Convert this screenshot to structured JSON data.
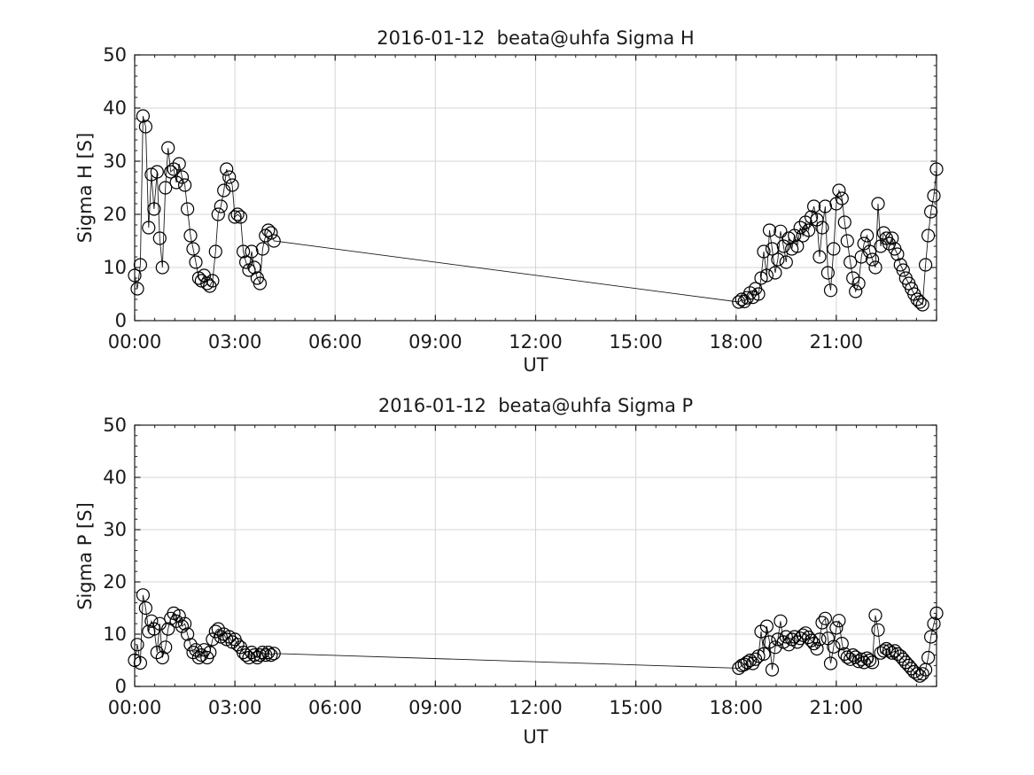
{
  "figure": {
    "background_color": "#ffffff",
    "axis_color": "#1a1a1a",
    "grid_color": "#d6d6d6",
    "text_color": "#1a1a1a",
    "marker_color": "#000000",
    "line_color": "#1a1a1a"
  },
  "chart_data": [
    {
      "type": "line",
      "marker": "circle",
      "title": "2016-01-12  beata@uhfa Sigma H",
      "xlabel": "UT",
      "ylabel": "Sigma H [S]",
      "xlim_hours": [
        0,
        24
      ],
      "ylim": [
        0,
        50
      ],
      "grid": true,
      "x_major_ticks_hours": [
        0,
        3,
        6,
        9,
        12,
        15,
        18,
        21,
        24
      ],
      "x_tick_labels": [
        "00:00",
        "03:00",
        "06:00",
        "09:00",
        "12:00",
        "15:00",
        "18:00",
        "21:00",
        ""
      ],
      "y_major_ticks": [
        0,
        10,
        20,
        30,
        40,
        50
      ],
      "y_tick_labels": [
        "0",
        "10",
        "20",
        "30",
        "40",
        "50"
      ],
      "x_minor_step_hours": 0.6,
      "y_minor_step": 2,
      "data_gap_hours": [
        4.17,
        18.08
      ],
      "series": [
        {
          "name": "Sigma H",
          "points_t_hours_value": [
            [
              0,
              8.5
            ],
            [
              0.08,
              6
            ],
            [
              0.17,
              10.5
            ],
            [
              0.25,
              38.5
            ],
            [
              0.33,
              36.5
            ],
            [
              0.42,
              17.5
            ],
            [
              0.5,
              27.5
            ],
            [
              0.58,
              21
            ],
            [
              0.67,
              28
            ],
            [
              0.75,
              15.5
            ],
            [
              0.83,
              10
            ],
            [
              0.92,
              25
            ],
            [
              1,
              32.5
            ],
            [
              1.08,
              28
            ],
            [
              1.17,
              28.5
            ],
            [
              1.25,
              26
            ],
            [
              1.33,
              29.5
            ],
            [
              1.42,
              27
            ],
            [
              1.5,
              25.5
            ],
            [
              1.58,
              21
            ],
            [
              1.67,
              16
            ],
            [
              1.75,
              13.5
            ],
            [
              1.83,
              11
            ],
            [
              1.92,
              8
            ],
            [
              2,
              7.5
            ],
            [
              2.08,
              8.5
            ],
            [
              2.17,
              7
            ],
            [
              2.25,
              6.5
            ],
            [
              2.33,
              7.5
            ],
            [
              2.42,
              13
            ],
            [
              2.5,
              20
            ],
            [
              2.58,
              21.5
            ],
            [
              2.67,
              24.5
            ],
            [
              2.75,
              28.5
            ],
            [
              2.83,
              27
            ],
            [
              2.92,
              25.5
            ],
            [
              3,
              19.5
            ],
            [
              3.08,
              20
            ],
            [
              3.17,
              19.5
            ],
            [
              3.25,
              13
            ],
            [
              3.33,
              11
            ],
            [
              3.42,
              9.5
            ],
            [
              3.5,
              13
            ],
            [
              3.58,
              10
            ],
            [
              3.67,
              8
            ],
            [
              3.75,
              7
            ],
            [
              3.83,
              13.5
            ],
            [
              3.92,
              16
            ],
            [
              4,
              17
            ],
            [
              4.08,
              16.5
            ],
            [
              4.17,
              15
            ],
            [
              18.08,
              3.5
            ],
            [
              18.17,
              4
            ],
            [
              18.25,
              3.6
            ],
            [
              18.33,
              4.3
            ],
            [
              18.42,
              5.2
            ],
            [
              18.5,
              4.4
            ],
            [
              18.58,
              6
            ],
            [
              18.67,
              5
            ],
            [
              18.75,
              8
            ],
            [
              18.83,
              13
            ],
            [
              18.92,
              8.5
            ],
            [
              19,
              17
            ],
            [
              19.08,
              13.5
            ],
            [
              19.17,
              9
            ],
            [
              19.25,
              11.5
            ],
            [
              19.33,
              16.8
            ],
            [
              19.42,
              14
            ],
            [
              19.5,
              11
            ],
            [
              19.58,
              15.5
            ],
            [
              19.67,
              13.5
            ],
            [
              19.75,
              16
            ],
            [
              19.83,
              14
            ],
            [
              19.92,
              17.5
            ],
            [
              20,
              16
            ],
            [
              20.08,
              18.5
            ],
            [
              20.17,
              17
            ],
            [
              20.25,
              19.5
            ],
            [
              20.33,
              21.5
            ],
            [
              20.42,
              19
            ],
            [
              20.5,
              12
            ],
            [
              20.58,
              17.5
            ],
            [
              20.67,
              21.5
            ],
            [
              20.75,
              9
            ],
            [
              20.83,
              5.7
            ],
            [
              20.92,
              13.5
            ],
            [
              21,
              22
            ],
            [
              21.08,
              24.5
            ],
            [
              21.17,
              23
            ],
            [
              21.25,
              18.5
            ],
            [
              21.33,
              15
            ],
            [
              21.42,
              11
            ],
            [
              21.5,
              8
            ],
            [
              21.58,
              5.5
            ],
            [
              21.67,
              7
            ],
            [
              21.75,
              12
            ],
            [
              21.83,
              14.5
            ],
            [
              21.92,
              16
            ],
            [
              22,
              13
            ],
            [
              22.08,
              11.5
            ],
            [
              22.17,
              10
            ],
            [
              22.25,
              22
            ],
            [
              22.33,
              14
            ],
            [
              22.42,
              16.5
            ],
            [
              22.5,
              15.5
            ],
            [
              22.58,
              14.5
            ],
            [
              22.67,
              15.5
            ],
            [
              22.75,
              13.5
            ],
            [
              22.83,
              12.5
            ],
            [
              22.92,
              10.5
            ],
            [
              23,
              9.5
            ],
            [
              23.08,
              8
            ],
            [
              23.17,
              7
            ],
            [
              23.25,
              6
            ],
            [
              23.33,
              5
            ],
            [
              23.42,
              4
            ],
            [
              23.5,
              3.5
            ],
            [
              23.58,
              3
            ],
            [
              23.67,
              10.5
            ],
            [
              23.75,
              16
            ],
            [
              23.83,
              20.5
            ],
            [
              23.92,
              23.5
            ],
            [
              24,
              28.5
            ]
          ]
        }
      ]
    },
    {
      "type": "line",
      "marker": "circle",
      "title": "2016-01-12  beata@uhfa Sigma P",
      "xlabel": "UT",
      "ylabel": "Sigma P [S]",
      "xlim_hours": [
        0,
        24
      ],
      "ylim": [
        0,
        50
      ],
      "grid": true,
      "x_major_ticks_hours": [
        0,
        3,
        6,
        9,
        12,
        15,
        18,
        21,
        24
      ],
      "x_tick_labels": [
        "00:00",
        "03:00",
        "06:00",
        "09:00",
        "12:00",
        "15:00",
        "18:00",
        "21:00",
        ""
      ],
      "y_major_ticks": [
        0,
        10,
        20,
        30,
        40,
        50
      ],
      "y_tick_labels": [
        "0",
        "10",
        "20",
        "30",
        "40",
        "50"
      ],
      "x_minor_step_hours": 0.6,
      "y_minor_step": 2,
      "data_gap_hours": [
        4.17,
        18.08
      ],
      "series": [
        {
          "name": "Sigma P",
          "points_t_hours_value": [
            [
              0,
              5
            ],
            [
              0.08,
              8
            ],
            [
              0.17,
              4.5
            ],
            [
              0.25,
              17.5
            ],
            [
              0.33,
              15
            ],
            [
              0.42,
              10.5
            ],
            [
              0.5,
              12.5
            ],
            [
              0.58,
              11
            ],
            [
              0.67,
              6.5
            ],
            [
              0.75,
              12
            ],
            [
              0.83,
              5.5
            ],
            [
              0.92,
              7.5
            ],
            [
              1,
              11
            ],
            [
              1.08,
              13
            ],
            [
              1.17,
              14
            ],
            [
              1.25,
              12.5
            ],
            [
              1.33,
              13.5
            ],
            [
              1.42,
              11.5
            ],
            [
              1.5,
              12
            ],
            [
              1.58,
              10
            ],
            [
              1.67,
              8
            ],
            [
              1.75,
              6.5
            ],
            [
              1.83,
              7
            ],
            [
              1.92,
              5.5
            ],
            [
              2,
              6
            ],
            [
              2.08,
              7
            ],
            [
              2.17,
              5.5
            ],
            [
              2.25,
              6.5
            ],
            [
              2.33,
              9
            ],
            [
              2.42,
              10.5
            ],
            [
              2.5,
              11
            ],
            [
              2.58,
              9.5
            ],
            [
              2.67,
              10
            ],
            [
              2.75,
              9
            ],
            [
              2.83,
              9.5
            ],
            [
              2.92,
              8.5
            ],
            [
              3,
              9
            ],
            [
              3.08,
              8
            ],
            [
              3.17,
              7.5
            ],
            [
              3.25,
              6.5
            ],
            [
              3.33,
              6
            ],
            [
              3.42,
              5.5
            ],
            [
              3.5,
              6.5
            ],
            [
              3.58,
              6
            ],
            [
              3.67,
              5.5
            ],
            [
              3.75,
              6
            ],
            [
              3.83,
              6.5
            ],
            [
              3.92,
              6
            ],
            [
              4,
              6.5
            ],
            [
              4.08,
              6
            ],
            [
              4.17,
              6.3
            ],
            [
              18.08,
              3.5
            ],
            [
              18.17,
              4
            ],
            [
              18.25,
              4.2
            ],
            [
              18.33,
              4.6
            ],
            [
              18.42,
              5
            ],
            [
              18.5,
              4.4
            ],
            [
              18.58,
              5.2
            ],
            [
              18.67,
              5.8
            ],
            [
              18.75,
              10.5
            ],
            [
              18.83,
              6.2
            ],
            [
              18.92,
              11.5
            ],
            [
              19,
              8.5
            ],
            [
              19.08,
              3.2
            ],
            [
              19.17,
              7.5
            ],
            [
              19.25,
              9
            ],
            [
              19.33,
              12.5
            ],
            [
              19.42,
              8.5
            ],
            [
              19.5,
              9.5
            ],
            [
              19.58,
              8
            ],
            [
              19.67,
              9
            ],
            [
              19.75,
              9.5
            ],
            [
              19.83,
              8.5
            ],
            [
              19.92,
              9.2
            ],
            [
              20,
              9.8
            ],
            [
              20.08,
              10.2
            ],
            [
              20.17,
              9.4
            ],
            [
              20.25,
              8.8
            ],
            [
              20.33,
              8.2
            ],
            [
              20.42,
              7.2
            ],
            [
              20.5,
              9
            ],
            [
              20.58,
              12.2
            ],
            [
              20.67,
              13
            ],
            [
              20.75,
              9.2
            ],
            [
              20.83,
              4.4
            ],
            [
              20.92,
              7.6
            ],
            [
              21,
              11.2
            ],
            [
              21.08,
              12.6
            ],
            [
              21.17,
              8.2
            ],
            [
              21.25,
              6.2
            ],
            [
              21.33,
              5.6
            ],
            [
              21.42,
              5.2
            ],
            [
              21.5,
              6
            ],
            [
              21.58,
              5.6
            ],
            [
              21.67,
              4.8
            ],
            [
              21.75,
              5.2
            ],
            [
              21.83,
              4.6
            ],
            [
              21.92,
              5.4
            ],
            [
              22,
              5
            ],
            [
              22.08,
              4.6
            ],
            [
              22.17,
              13.6
            ],
            [
              22.25,
              10.8
            ],
            [
              22.33,
              6.4
            ],
            [
              22.42,
              6.8
            ],
            [
              22.5,
              7.2
            ],
            [
              22.58,
              6.8
            ],
            [
              22.67,
              6.4
            ],
            [
              22.75,
              6.8
            ],
            [
              22.83,
              6.2
            ],
            [
              22.92,
              5.8
            ],
            [
              23,
              5.2
            ],
            [
              23.08,
              4.6
            ],
            [
              23.17,
              4
            ],
            [
              23.25,
              3.4
            ],
            [
              23.33,
              2.8
            ],
            [
              23.42,
              2.4
            ],
            [
              23.5,
              2
            ],
            [
              23.58,
              2.4
            ],
            [
              23.67,
              3.2
            ],
            [
              23.75,
              5.5
            ],
            [
              23.83,
              9.5
            ],
            [
              23.92,
              12
            ],
            [
              24,
              14
            ]
          ]
        }
      ]
    }
  ]
}
